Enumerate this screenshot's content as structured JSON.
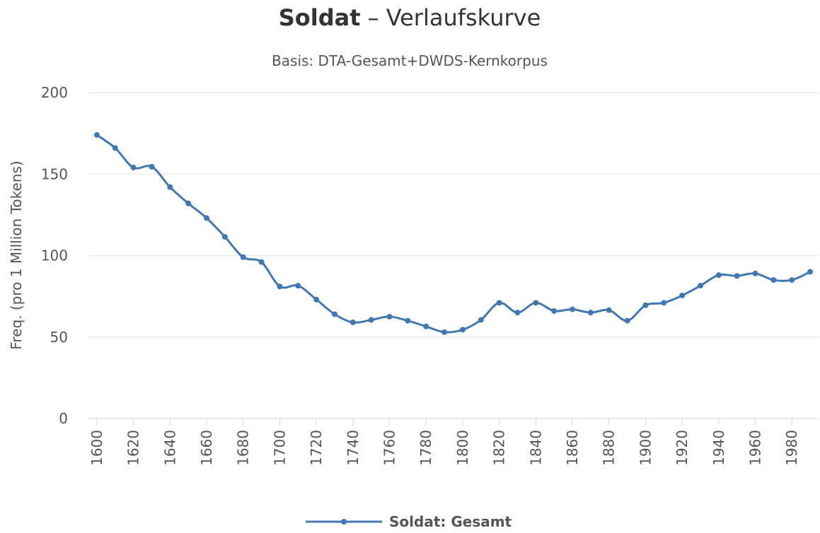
{
  "chart_data": {
    "type": "line",
    "title": {
      "term": "Soldat",
      "text": "– Verlaufskurve"
    },
    "subtitle": "Basis: DTA-Gesamt+DWDS-Kernkorpus",
    "y_label": "Freq. (pro 1 Million Tokens)",
    "x": [
      1600,
      1610,
      1620,
      1630,
      1640,
      1650,
      1660,
      1670,
      1680,
      1690,
      1700,
      1710,
      1720,
      1730,
      1740,
      1750,
      1760,
      1770,
      1780,
      1790,
      1800,
      1810,
      1820,
      1830,
      1840,
      1850,
      1860,
      1870,
      1880,
      1890,
      1900,
      1910,
      1920,
      1930,
      1940,
      1950,
      1960,
      1970,
      1980,
      1990
    ],
    "series": [
      {
        "name": "Soldat: Gesamt",
        "color": "#4177b3",
        "values": [
          174,
          166,
          154,
          154.5,
          142,
          132,
          123,
          111.5,
          99,
          96,
          81,
          81.5,
          73,
          64,
          59,
          60.5,
          62.5,
          60,
          56.5,
          53,
          54.5,
          60.5,
          71,
          65,
          71,
          66,
          67,
          65,
          66.5,
          60,
          69.5,
          71,
          75.5,
          81.5,
          88,
          87.5,
          89,
          85,
          85,
          90
        ]
      }
    ],
    "xlim": [
      1595,
      1995
    ],
    "xticks": [
      1600,
      1620,
      1640,
      1660,
      1680,
      1700,
      1720,
      1740,
      1760,
      1780,
      1800,
      1820,
      1840,
      1860,
      1880,
      1900,
      1920,
      1940,
      1960,
      1980
    ],
    "ylim": [
      0,
      200
    ],
    "yticks": [
      0,
      50,
      100,
      150,
      200
    ],
    "grid": true,
    "legend": "bottom"
  }
}
